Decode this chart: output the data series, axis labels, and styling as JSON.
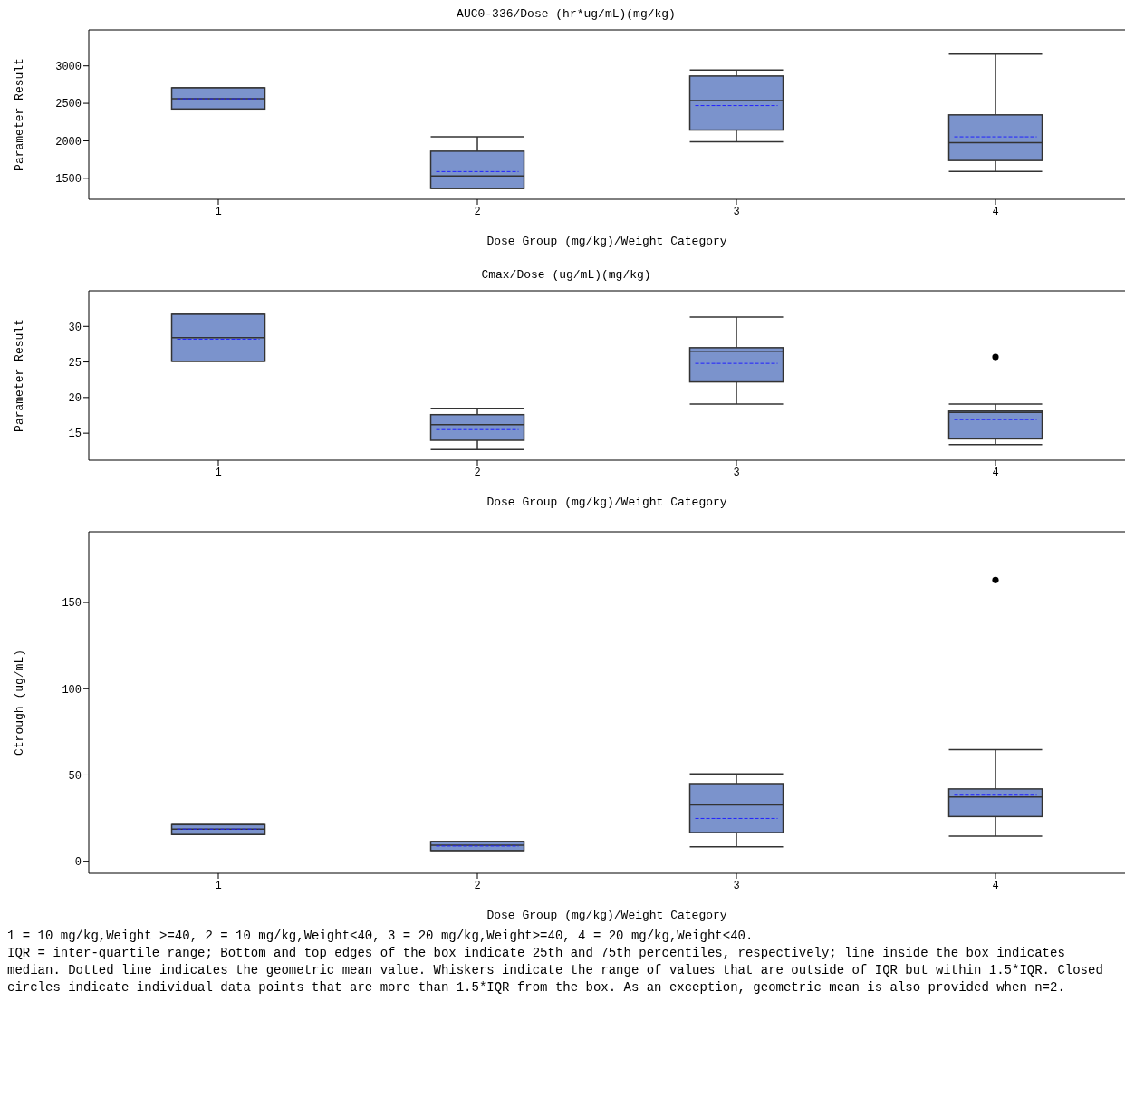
{
  "chart_data": [
    {
      "type": "box",
      "title": "AUC0-336/Dose (hr*ug/mL)(mg/kg)",
      "xlabel": "Dose Group (mg/kg)/Weight Category",
      "ylabel": "Parameter Result",
      "categories": [
        "1",
        "2",
        "3",
        "4"
      ],
      "color": "#7b93cc",
      "ylim": [
        1220,
        3480
      ],
      "yticks": [
        1500,
        2000,
        2500,
        3000
      ],
      "boxes": [
        {
          "low": 2425,
          "q1": 2425,
          "median": 2560,
          "q3": 2707,
          "high": 2707,
          "mean": 2560
        },
        {
          "low": 1365,
          "q1": 1365,
          "median": 1530,
          "q3": 1862,
          "high": 2053,
          "mean": 1590
        },
        {
          "low": 1986,
          "q1": 2144,
          "median": 2538,
          "q3": 2865,
          "high": 2944,
          "mean": 2470
        },
        {
          "low": 1592,
          "q1": 1738,
          "median": 1975,
          "q3": 2346,
          "high": 3158,
          "mean": 2053
        }
      ]
    },
    {
      "type": "box",
      "title": "Cmax/Dose (ug/mL)(mg/kg)",
      "xlabel": "Dose Group (mg/kg)/Weight Category",
      "ylabel": "Parameter Result",
      "categories": [
        "1",
        "2",
        "3",
        "4"
      ],
      "color": "#7b93cc",
      "ylim": [
        11.2,
        35
      ],
      "yticks": [
        15,
        20,
        25,
        30
      ],
      "boxes": [
        {
          "low": 25.1,
          "q1": 25.1,
          "median": 28.4,
          "q3": 31.7,
          "high": 31.7,
          "mean": 28.2
        },
        {
          "low": 12.7,
          "q1": 14.0,
          "median": 16.2,
          "q3": 17.6,
          "high": 18.5,
          "mean": 15.5
        },
        {
          "low": 19.1,
          "q1": 22.2,
          "median": 26.5,
          "q3": 27.0,
          "high": 31.3,
          "mean": 24.8
        },
        {
          "low": 13.4,
          "q1": 14.2,
          "median": 17.9,
          "q3": 18.1,
          "high": 19.1,
          "mean": 16.9,
          "outliers": [
            25.7
          ]
        }
      ]
    },
    {
      "type": "box",
      "xlabel": "Dose Group (mg/kg)/Weight Category",
      "ylabel": "Ctrough (ug/mL)",
      "categories": [
        "1",
        "2",
        "3",
        "4"
      ],
      "color": "#7b93cc",
      "ylim": [
        -7,
        191
      ],
      "yticks": [
        0,
        50,
        100,
        150
      ],
      "boxes": [
        {
          "low": 15.5,
          "q1": 15.5,
          "median": 18.6,
          "q3": 21.2,
          "high": 21.2,
          "mean": 18.6
        },
        {
          "low": 6.2,
          "q1": 6.2,
          "median": 9.3,
          "q3": 11.4,
          "high": 11.4,
          "mean": 8.8
        },
        {
          "low": 8.3,
          "q1": 16.6,
          "median": 32.6,
          "q3": 45,
          "high": 50.7,
          "mean": 24.8
        },
        {
          "low": 14.5,
          "q1": 25.9,
          "median": 37.2,
          "q3": 41.9,
          "high": 64.7,
          "mean": 38.3,
          "outliers": [
            163
          ]
        }
      ],
      "annotations": [
        "1 = 10 mg/kg,Weight >=40, 2 = 10 mg/kg,Weight<40, 3 = 20 mg/kg,Weight>=40, 4 = 20 mg/kg,Weight<40.",
        "IQR = inter-quartile range; Bottom and top edges of the box indicate 25th and 75th percentiles, respectively; line inside the box indicates median.  Dotted line indicates the geometric mean value. Whiskers indicate the range of values that are outside of IQR but within 1.5*IQR.  Closed circles indicate individual data points that are more than 1.5*IQR from the box. As an exception, geometric mean is also provided when n=2."
      ]
    }
  ]
}
